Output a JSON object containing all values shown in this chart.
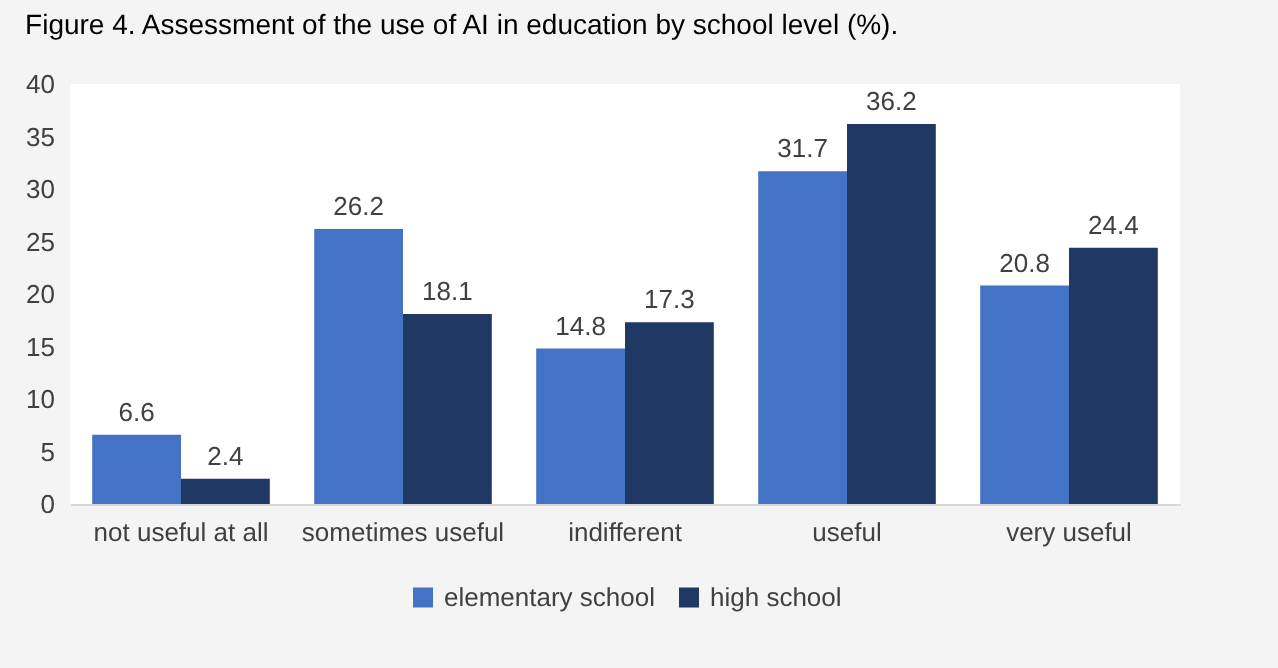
{
  "chart_data": {
    "type": "bar",
    "title": "Figure 4. Assessment of the use of AI in education by school level (%).",
    "categories": [
      "not useful at all",
      "sometimes useful",
      "indifferent",
      "useful",
      "very useful"
    ],
    "series": [
      {
        "name": "elementary school",
        "color": "#4472c4",
        "values": [
          6.6,
          26.2,
          14.8,
          31.7,
          20.8
        ]
      },
      {
        "name": "high school",
        "color": "#1f3864",
        "values": [
          2.4,
          18.1,
          17.3,
          36.2,
          24.4
        ]
      }
    ],
    "ylim": [
      0,
      40
    ],
    "yticks": [
      0,
      5,
      10,
      15,
      20,
      25,
      30,
      35,
      40
    ],
    "data_labels": true,
    "legend": "bottom"
  }
}
